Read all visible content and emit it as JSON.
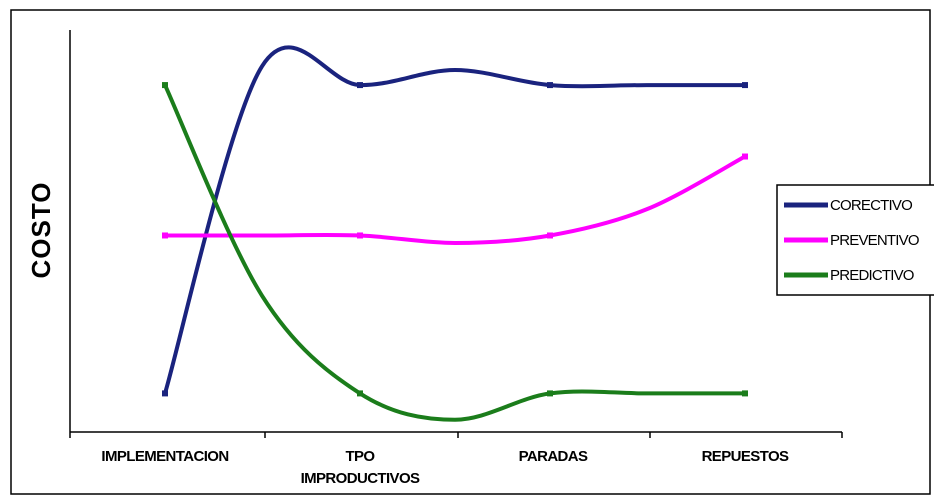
{
  "chart_data": {
    "type": "line",
    "title": "",
    "xlabel": "",
    "ylabel": "COSTO",
    "categories": [
      [
        "IMPLEMENTACION"
      ],
      [
        "TPO",
        "IMPRODUCTIVOS"
      ],
      [
        "PARADAS"
      ],
      [
        "REPUESTOS"
      ]
    ],
    "series": [
      {
        "name": "CORECTIVO",
        "color": "#1a237e",
        "values": [
          0.1,
          0.92,
          0.92,
          0.92
        ],
        "mid_values": [
          0.97,
          0.96,
          0.92
        ]
      },
      {
        "name": "PREVENTIVO",
        "color": "#ff00ff",
        "values": [
          0.52,
          0.52,
          0.52,
          0.73
        ],
        "mid_values": [
          0.52,
          0.5,
          0.59
        ]
      },
      {
        "name": "PREDICTIVO",
        "color": "#1b7d1b",
        "values": [
          0.92,
          0.1,
          0.1,
          0.1
        ],
        "mid_values": [
          0.36,
          0.03,
          0.1
        ]
      }
    ],
    "ylim": [
      0,
      1
    ],
    "grid": false,
    "legend_position": "right"
  }
}
